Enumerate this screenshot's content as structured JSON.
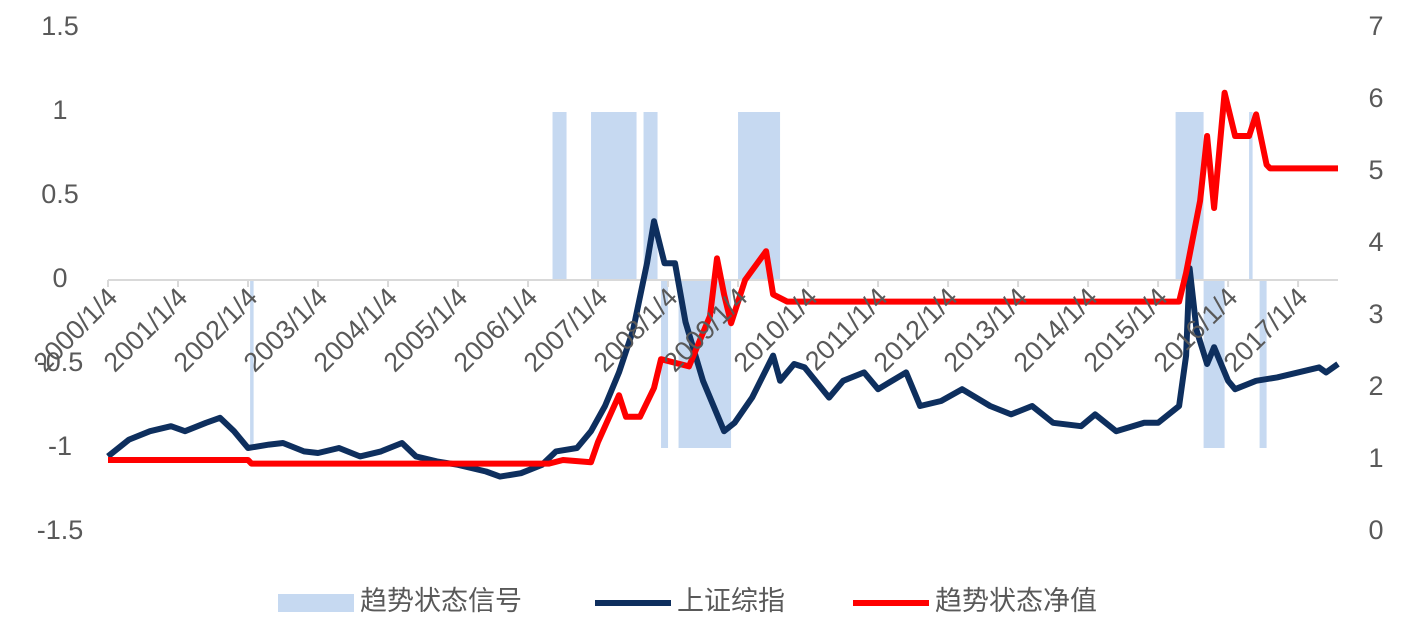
{
  "chart_data": {
    "type": "line",
    "xlim": [
      2000,
      2017.57
    ],
    "xticks": [
      {
        "value": 2000,
        "label": "2000/1/4"
      },
      {
        "value": 2001,
        "label": "2001/1/4"
      },
      {
        "value": 2002,
        "label": "2002/1/4"
      },
      {
        "value": 2003,
        "label": "2003/1/4"
      },
      {
        "value": 2004,
        "label": "2004/1/4"
      },
      {
        "value": 2005,
        "label": "2005/1/4"
      },
      {
        "value": 2006,
        "label": "2006/1/4"
      },
      {
        "value": 2007,
        "label": "2007/1/4"
      },
      {
        "value": 2008,
        "label": "2008/1/4"
      },
      {
        "value": 2009,
        "label": "2009/1/4"
      },
      {
        "value": 2010,
        "label": "2010/1/4"
      },
      {
        "value": 2011,
        "label": "2011/1/4"
      },
      {
        "value": 2012,
        "label": "2012/1/4"
      },
      {
        "value": 2013,
        "label": "2013/1/4"
      },
      {
        "value": 2014,
        "label": "2014/1/4"
      },
      {
        "value": 2015,
        "label": "2015/1/4"
      },
      {
        "value": 2016,
        "label": "2016/1/4"
      },
      {
        "value": 2017,
        "label": "2017/1/4"
      }
    ],
    "ylim": [
      -1.5,
      1.5
    ],
    "yticks": [
      -1.5,
      -1,
      -0.5,
      0,
      0.5,
      1,
      1.5
    ],
    "y2lim": [
      0,
      7
    ],
    "y2ticks": [
      0,
      1,
      2,
      3,
      4,
      5,
      6,
      7
    ],
    "series": [
      {
        "name": "趋势状态信号",
        "kind": "bar",
        "color": "#c6d9f1",
        "x": [
          2002.03,
          2002.08,
          2006.35,
          2006.55,
          2006.9,
          2007.55,
          2007.65,
          2007.85,
          2007.9,
          2008.0,
          2008.15,
          2008.9,
          2009.0,
          2009.6,
          2015.25,
          2015.65,
          2015.95,
          2016.3,
          2016.35,
          2016.45,
          2016.55
        ],
        "values": [
          -1,
          0,
          1,
          0,
          1,
          0,
          1,
          0,
          -1,
          0,
          -1,
          0,
          1,
          0,
          1,
          -1,
          0,
          1,
          0,
          -1,
          0
        ]
      },
      {
        "name": "上证综指",
        "kind": "line",
        "color": "#0e2f5e",
        "x": [
          2000.0,
          2000.3,
          2000.6,
          2000.9,
          2001.1,
          2001.4,
          2001.6,
          2001.8,
          2002.0,
          2002.3,
          2002.5,
          2002.8,
          2003.0,
          2003.3,
          2003.6,
          2003.9,
          2004.2,
          2004.4,
          2004.7,
          2005.0,
          2005.4,
          2005.6,
          2005.9,
          2006.2,
          2006.4,
          2006.7,
          2006.9,
          2007.1,
          2007.3,
          2007.5,
          2007.7,
          2007.8,
          2007.95,
          2008.1,
          2008.25,
          2008.5,
          2008.8,
          2008.95,
          2009.2,
          2009.5,
          2009.6,
          2009.8,
          2009.95,
          2010.3,
          2010.5,
          2010.8,
          2011.0,
          2011.4,
          2011.6,
          2011.9,
          2012.2,
          2012.6,
          2012.9,
          2013.2,
          2013.5,
          2013.9,
          2014.1,
          2014.4,
          2014.8,
          2015.0,
          2015.3,
          2015.4,
          2015.45,
          2015.55,
          2015.7,
          2015.8,
          2016.0,
          2016.1,
          2016.4,
          2016.7,
          2017.0,
          2017.3,
          2017.4,
          2017.57
        ],
        "values": [
          -1.05,
          -0.95,
          -0.9,
          -0.87,
          -0.9,
          -0.85,
          -0.82,
          -0.9,
          -1.0,
          -0.98,
          -0.97,
          -1.02,
          -1.03,
          -1.0,
          -1.05,
          -1.02,
          -0.97,
          -1.05,
          -1.08,
          -1.1,
          -1.14,
          -1.17,
          -1.15,
          -1.1,
          -1.02,
          -1.0,
          -0.9,
          -0.75,
          -0.55,
          -0.3,
          0.1,
          0.35,
          0.1,
          0.1,
          -0.25,
          -0.6,
          -0.9,
          -0.85,
          -0.7,
          -0.45,
          -0.6,
          -0.5,
          -0.52,
          -0.7,
          -0.6,
          -0.55,
          -0.65,
          -0.55,
          -0.75,
          -0.72,
          -0.65,
          -0.75,
          -0.8,
          -0.75,
          -0.85,
          -0.87,
          -0.8,
          -0.9,
          -0.85,
          -0.85,
          -0.75,
          -0.45,
          0.07,
          -0.3,
          -0.5,
          -0.4,
          -0.6,
          -0.65,
          -0.6,
          -0.58,
          -0.55,
          -0.52,
          -0.55,
          -0.5
        ]
      },
      {
        "name": "趋势状态净值",
        "kind": "line",
        "color": "#ff0000",
        "axis": "y2",
        "x": [
          2000.0,
          2002.0,
          2002.05,
          2006.3,
          2006.5,
          2006.9,
          2007.0,
          2007.3,
          2007.4,
          2007.6,
          2007.8,
          2007.9,
          2008.3,
          2008.6,
          2008.7,
          2008.8,
          2008.9,
          2009.1,
          2009.4,
          2009.5,
          2009.7,
          2015.3,
          2015.4,
          2015.6,
          2015.7,
          2015.8,
          2015.95,
          2016.1,
          2016.3,
          2016.4,
          2016.55,
          2016.6,
          2017.57
        ],
        "values": [
          1.0,
          1.0,
          0.95,
          0.95,
          1.0,
          0.97,
          1.25,
          1.9,
          1.6,
          1.6,
          2.0,
          2.4,
          2.3,
          3.0,
          3.8,
          3.3,
          2.9,
          3.5,
          3.9,
          3.3,
          3.2,
          3.2,
          3.6,
          4.6,
          5.5,
          4.5,
          6.1,
          5.5,
          5.5,
          5.8,
          5.1,
          5.05,
          5.05
        ]
      }
    ]
  }
}
